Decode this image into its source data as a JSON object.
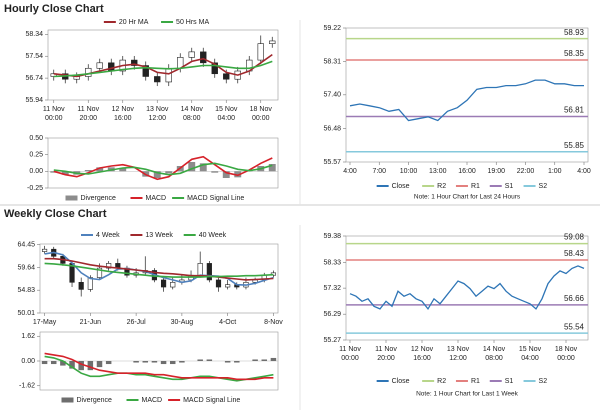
{
  "sections": [
    {
      "title": "Hourly Close Chart"
    },
    {
      "title": "Weekly Close Chart"
    }
  ],
  "chart_data": [
    {
      "type": "candlestick",
      "categories": [
        "11 Nov 00:00",
        null,
        null,
        "11 Nov 20:00",
        null,
        null,
        "12 Nov 16:00",
        null,
        null,
        "13 Nov 12:00",
        null,
        null,
        "14 Nov 08:00",
        null,
        null,
        "15 Nov 04:00",
        null,
        null,
        "18 Nov 00:00",
        null
      ],
      "open": [
        56.8,
        56.9,
        56.7,
        56.8,
        57.1,
        57.3,
        57.0,
        57.4,
        57.2,
        56.8,
        56.6,
        57.1,
        57.5,
        57.7,
        57.3,
        56.9,
        56.7,
        57.0,
        57.4,
        58.0
      ],
      "high": [
        57.05,
        57.05,
        56.95,
        57.25,
        57.45,
        57.45,
        57.55,
        57.55,
        57.35,
        56.95,
        57.25,
        57.65,
        57.85,
        57.85,
        57.45,
        57.05,
        57.15,
        57.55,
        58.3,
        58.25
      ],
      "low": [
        56.65,
        56.55,
        56.55,
        56.65,
        56.95,
        56.85,
        56.85,
        57.05,
        56.65,
        56.45,
        56.45,
        56.95,
        57.35,
        57.15,
        56.75,
        56.55,
        56.55,
        56.85,
        57.25,
        57.85
      ],
      "close": [
        56.9,
        56.7,
        56.8,
        57.1,
        57.3,
        57.0,
        57.4,
        57.2,
        56.8,
        56.6,
        57.1,
        57.5,
        57.7,
        57.3,
        56.9,
        56.7,
        57.0,
        57.4,
        58.0,
        58.1
      ],
      "series": [
        {
          "name": "20 Hr MA",
          "color": "#a0282d",
          "values": [
            56.9,
            56.85,
            56.8,
            56.9,
            57.0,
            57.1,
            57.2,
            57.25,
            57.15,
            56.95,
            56.9,
            57.1,
            57.35,
            57.45,
            57.25,
            56.95,
            56.85,
            57.0,
            57.3,
            57.6
          ]
        },
        {
          "name": "50 Hrs MA",
          "color": "#3aa843",
          "values": [
            56.8,
            56.82,
            56.85,
            56.9,
            56.95,
            57.0,
            57.05,
            57.1,
            57.12,
            57.1,
            57.08,
            57.1,
            57.15,
            57.2,
            57.2,
            57.15,
            57.1,
            57.1,
            57.2,
            57.35
          ]
        }
      ],
      "ylim": [
        55.94,
        58.5
      ],
      "yticks": [
        58.34,
        57.54,
        56.74,
        55.94
      ]
    },
    {
      "type": "macd",
      "series": [
        {
          "name": "Divergence",
          "color": "#8c8c8c",
          "style": "bar",
          "values": [
            -0.02,
            -0.05,
            -0.05,
            0.02,
            0.06,
            0.06,
            0.05,
            0.0,
            -0.08,
            -0.1,
            -0.03,
            0.08,
            0.14,
            0.12,
            -0.02,
            -0.1,
            -0.09,
            0.01,
            0.08,
            0.11
          ]
        },
        {
          "name": "MACD",
          "color": "#d6222a",
          "style": "line",
          "values": [
            0.0,
            -0.05,
            -0.08,
            -0.02,
            0.05,
            0.08,
            0.1,
            0.06,
            -0.05,
            -0.12,
            -0.08,
            0.05,
            0.18,
            0.22,
            0.1,
            -0.02,
            -0.06,
            0.02,
            0.12,
            0.2
          ]
        },
        {
          "name": "MACD Signal Line",
          "color": "#3aa843",
          "style": "line",
          "values": [
            0.02,
            0.0,
            -0.03,
            -0.04,
            -0.01,
            0.02,
            0.05,
            0.06,
            0.03,
            -0.02,
            -0.05,
            -0.03,
            0.04,
            0.1,
            0.12,
            0.08,
            0.03,
            0.01,
            0.04,
            0.09
          ]
        }
      ],
      "ylim": [
        -0.25,
        0.5
      ],
      "yticks": [
        {
          "value": 0.5,
          "label": "0.50"
        },
        0.25,
        {
          "value": 0,
          "label": "0.00"
        },
        -0.25
      ]
    },
    {
      "type": "line",
      "categories": [
        "4:00",
        null,
        null,
        "7:00",
        null,
        null,
        "10:00",
        null,
        null,
        "13:00",
        null,
        null,
        "16:00",
        null,
        null,
        "19:00",
        null,
        null,
        "22:00",
        null,
        null,
        "1:00",
        null,
        null,
        "4:00"
      ],
      "series": [
        {
          "name": "Close",
          "color": "#2e75b6",
          "values": [
            57.1,
            57.15,
            57.1,
            57.05,
            56.95,
            57.0,
            56.7,
            56.75,
            56.8,
            56.7,
            56.95,
            57.05,
            57.25,
            57.55,
            57.6,
            57.6,
            57.65,
            57.65,
            57.7,
            57.8,
            57.8,
            57.7,
            57.7,
            57.65,
            57.65
          ]
        }
      ],
      "levels": [
        {
          "name": "R2",
          "color": "#b8d68a",
          "value": 58.93
        },
        {
          "name": "R1",
          "color": "#e3807e",
          "value": 58.35
        },
        {
          "name": "S1",
          "color": "#9b7bb5",
          "value": 56.81
        },
        {
          "name": "S2",
          "color": "#86c9dc",
          "value": 55.85
        }
      ],
      "note": "Note: 1 Hour Chart for Last 24 Hours",
      "ylim": [
        55.57,
        59.22
      ],
      "yticks": [
        59.22,
        58.31,
        {
          "value": 57.4,
          "label": "57.40"
        },
        56.48,
        55.57
      ]
    },
    {
      "type": "candlestick",
      "categories": [
        "17-May",
        null,
        null,
        null,
        null,
        "21-Jun",
        null,
        null,
        null,
        null,
        "26-Jul",
        null,
        null,
        null,
        null,
        "30-Aug",
        null,
        null,
        null,
        null,
        "4-Oct",
        null,
        null,
        null,
        null,
        "8-Nov"
      ],
      "open": [
        63.0,
        63.5,
        62.0,
        60.5,
        56.5,
        55.0,
        57.5,
        59.5,
        60.5,
        59.5,
        58.0,
        58.5,
        59.0,
        57.0,
        55.5,
        56.5,
        57.0,
        58.0,
        60.5,
        57.0,
        55.5,
        56.0,
        55.5,
        56.5,
        57.0,
        58.0
      ],
      "high": [
        64.2,
        64.0,
        62.5,
        61.0,
        57.5,
        58.0,
        60.5,
        61.0,
        61.5,
        60.0,
        59.5,
        62.0,
        59.5,
        57.5,
        57.5,
        58.0,
        59.0,
        63.0,
        61.0,
        57.5,
        57.0,
        56.5,
        57.5,
        57.5,
        58.5,
        59.0
      ],
      "low": [
        62.5,
        61.5,
        60.0,
        55.5,
        53.5,
        54.5,
        57.0,
        59.0,
        59.0,
        57.5,
        57.5,
        58.0,
        56.5,
        54.5,
        55.0,
        56.0,
        56.5,
        57.5,
        56.5,
        54.5,
        55.0,
        55.0,
        55.0,
        56.0,
        56.5,
        57.5
      ],
      "close": [
        63.5,
        62.0,
        60.5,
        56.5,
        55.0,
        57.5,
        59.5,
        60.5,
        59.5,
        58.0,
        58.5,
        59.0,
        57.0,
        55.5,
        56.5,
        57.0,
        58.0,
        60.5,
        57.0,
        55.5,
        56.0,
        55.5,
        56.5,
        57.0,
        58.0,
        58.5
      ],
      "series": [
        {
          "name": "4 Week",
          "color": "#4f81bd",
          "values": [
            62.5,
            62.8,
            62.3,
            60.6,
            58.5,
            57.3,
            57.1,
            58.1,
            59.3,
            59.4,
            59.1,
            58.8,
            58.1,
            57.5,
            57.0,
            56.5,
            56.8,
            58.0,
            57.9,
            57.8,
            57.3,
            56.0,
            55.9,
            56.3,
            56.9,
            57.5
          ]
        },
        {
          "name": "13 Week",
          "color": "#a0282d",
          "values": [
            61.5,
            61.5,
            61.3,
            61.0,
            60.6,
            60.2,
            59.9,
            59.7,
            59.5,
            59.3,
            59.1,
            58.9,
            58.6,
            58.4,
            58.3,
            58.1,
            57.9,
            57.9,
            57.8,
            57.6,
            57.4,
            57.2,
            57.0,
            57.1,
            57.2,
            57.3
          ]
        },
        {
          "name": "40 Week",
          "color": "#3aa843",
          "values": [
            60.5,
            60.4,
            60.2,
            60.0,
            59.7,
            59.4,
            59.1,
            58.8,
            58.6,
            58.4,
            58.2,
            58.0,
            57.8,
            57.7,
            57.6,
            57.6,
            57.6,
            57.6,
            57.7,
            57.7,
            57.8,
            57.8,
            57.9,
            57.9,
            58.0,
            58.1
          ]
        }
      ],
      "ylim": [
        50.01,
        64.6
      ],
      "yticks": [
        64.45,
        59.64,
        54.83,
        50.01
      ]
    },
    {
      "type": "macd",
      "series": [
        {
          "name": "Divergence",
          "color": "#6e6e6e",
          "style": "bar",
          "values": [
            -0.2,
            -0.2,
            -0.3,
            -0.5,
            -0.6,
            -0.6,
            -0.4,
            -0.2,
            0.0,
            0.0,
            -0.1,
            -0.1,
            -0.1,
            -0.2,
            -0.2,
            -0.1,
            0.0,
            0.1,
            0.1,
            0.0,
            -0.1,
            -0.1,
            0.0,
            0.1,
            0.1,
            0.2
          ]
        },
        {
          "name": "MACD",
          "color": "#3aa843",
          "style": "line",
          "values": [
            0.3,
            0.2,
            0.0,
            -0.4,
            -0.8,
            -1.0,
            -1.0,
            -0.9,
            -0.8,
            -0.8,
            -0.9,
            -0.9,
            -1.0,
            -1.1,
            -1.2,
            -1.2,
            -1.1,
            -1.0,
            -1.0,
            -1.1,
            -1.2,
            -1.3,
            -1.2,
            -1.1,
            -1.0,
            -0.9
          ]
        },
        {
          "name": "MACD Signal Line",
          "color": "#d6222a",
          "style": "line",
          "values": [
            0.5,
            0.4,
            0.3,
            0.1,
            -0.2,
            -0.4,
            -0.6,
            -0.7,
            -0.8,
            -0.8,
            -0.8,
            -0.8,
            -0.9,
            -0.9,
            -1.0,
            -1.1,
            -1.1,
            -1.1,
            -1.1,
            -1.1,
            -1.1,
            -1.2,
            -1.2,
            -1.2,
            -1.1,
            -1.1
          ]
        }
      ],
      "ylim": [
        -1.9,
        1.9
      ],
      "yticks": [
        1.62,
        {
          "value": 0,
          "label": "0.00"
        },
        -1.62
      ]
    },
    {
      "type": "line",
      "categories": [
        "11 Nov 00:00",
        null,
        null,
        null,
        null,
        null,
        "11 Nov 20:00",
        null,
        null,
        null,
        null,
        null,
        "12 Nov 16:00",
        null,
        null,
        null,
        null,
        null,
        "13 Nov 12:00",
        null,
        null,
        null,
        null,
        null,
        "14 Nov 08:00",
        null,
        null,
        null,
        null,
        null,
        "15 Nov 04:00",
        null,
        null,
        null,
        null,
        null,
        "18 Nov 00:00",
        null,
        null,
        null
      ],
      "series": [
        {
          "name": "Close",
          "color": "#2e75b6",
          "values": [
            57.1,
            57.0,
            56.8,
            56.9,
            56.6,
            56.5,
            56.8,
            56.6,
            57.2,
            57.0,
            57.1,
            56.9,
            56.8,
            56.5,
            56.9,
            56.7,
            57.0,
            57.3,
            57.6,
            57.5,
            57.3,
            57.0,
            57.2,
            57.4,
            57.3,
            57.5,
            57.2,
            57.0,
            56.9,
            56.8,
            56.7,
            56.5,
            56.9,
            57.5,
            57.8,
            58.0,
            57.9,
            58.1,
            58.2,
            58.1
          ]
        }
      ],
      "levels": [
        {
          "name": "R2",
          "color": "#b8d68a",
          "value": 59.08
        },
        {
          "name": "R1",
          "color": "#e3807e",
          "value": 58.43
        },
        {
          "name": "S1",
          "color": "#9b7bb5",
          "value": 56.66
        },
        {
          "name": "S2",
          "color": "#86c9dc",
          "value": 55.54
        }
      ],
      "note": "Note: 1 Hour Chart for Last 1 Week",
      "ylim": [
        55.27,
        59.38
      ],
      "yticks": [
        59.38,
        58.33,
        57.32,
        56.29,
        55.27
      ]
    }
  ]
}
